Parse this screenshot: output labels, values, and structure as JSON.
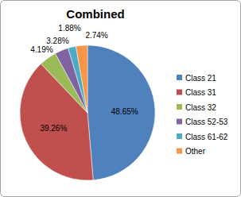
{
  "chart_data": {
    "type": "pie",
    "title": "Combined",
    "categories": [
      "Class 21",
      "Class 31",
      "Class 32",
      "Class 52-53",
      "Class 61-62",
      "Other"
    ],
    "values": [
      48.65,
      39.26,
      4.19,
      3.28,
      1.88,
      2.74
    ],
    "value_labels": [
      "48.65%",
      "39.26%",
      "4.19%",
      "3.28%",
      "1.88%",
      "2.74%"
    ],
    "colors": [
      "#4f81bd",
      "#c0504d",
      "#9bbb59",
      "#8064a2",
      "#4bacc6",
      "#f79646"
    ],
    "legend": "right",
    "data_labels": true
  }
}
